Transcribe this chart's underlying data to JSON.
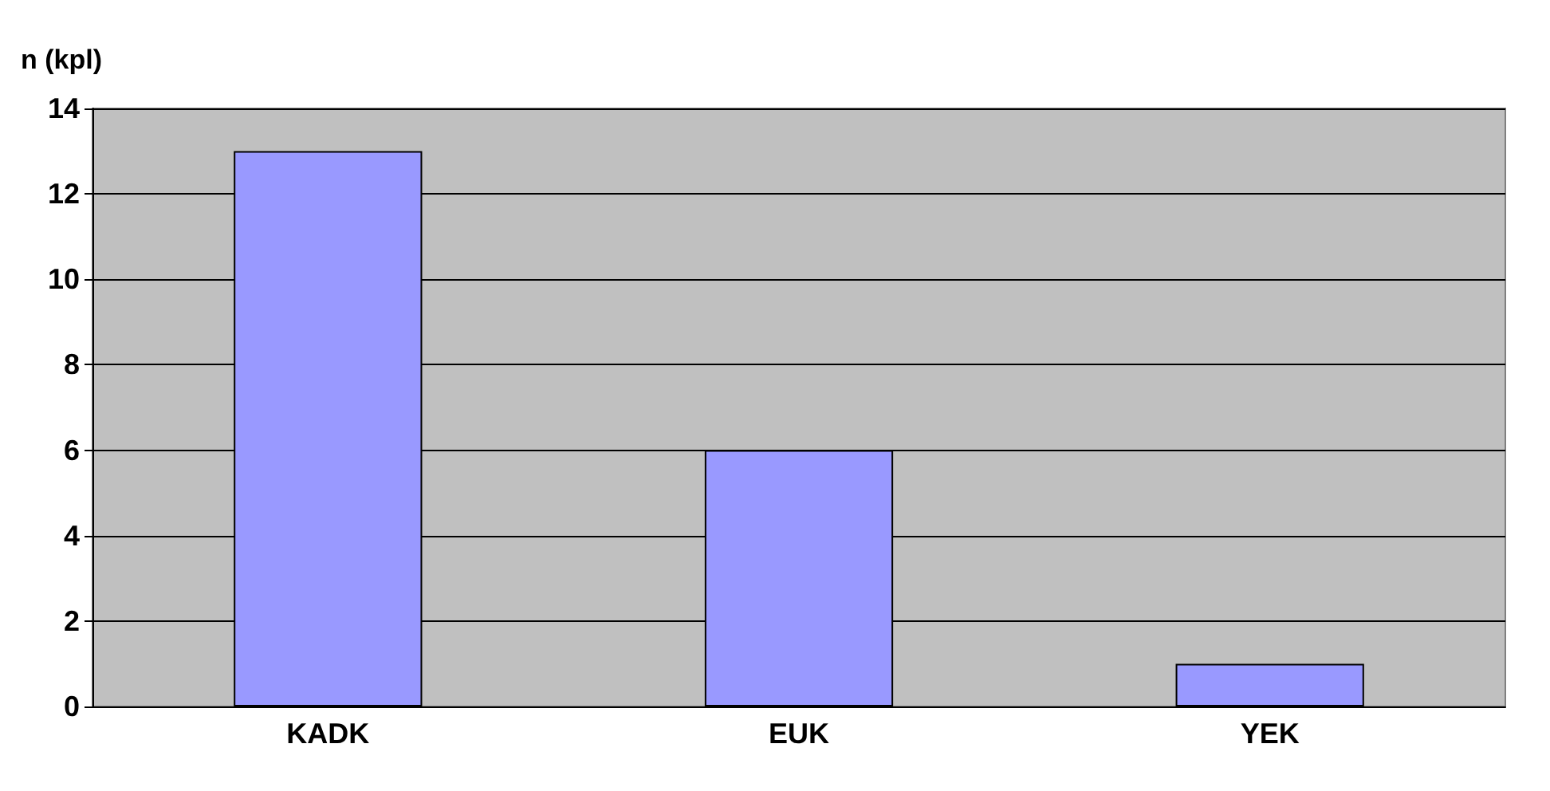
{
  "chart_data": {
    "type": "bar",
    "ylabel": "n (kpl)",
    "categories": [
      "KADK",
      "EUK",
      "YEK"
    ],
    "values": [
      13,
      6,
      1
    ],
    "color": "#9999ff",
    "ylim": [
      0,
      14
    ],
    "yticks": [
      0,
      2,
      4,
      6,
      8,
      10,
      12,
      14
    ],
    "grid": "y"
  }
}
